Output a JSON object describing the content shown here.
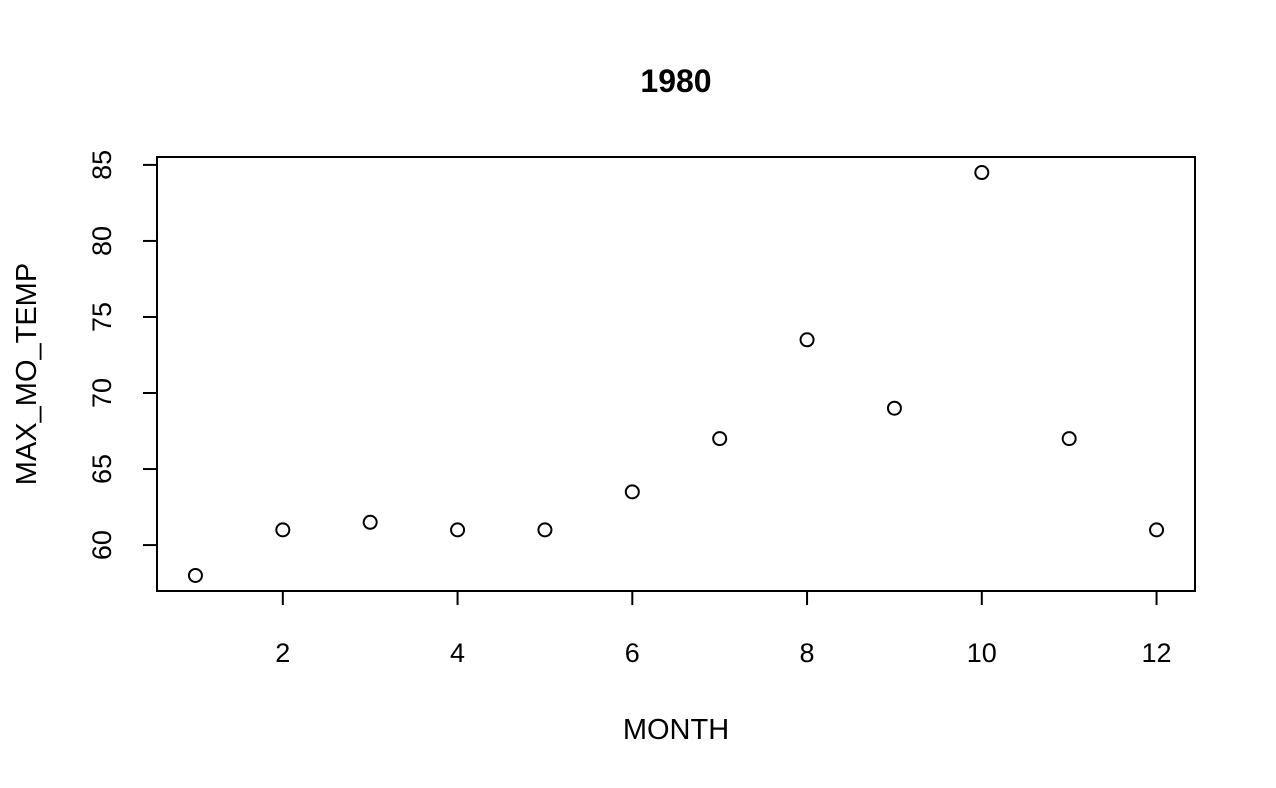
{
  "chart_data": {
    "type": "scatter",
    "title": "1980",
    "xlabel": "MONTH",
    "ylabel": "MAX_MO_TEMP",
    "xlim": [
      0.56,
      12.44
    ],
    "ylim": [
      56.98,
      85.52
    ],
    "x_ticks": [
      2,
      4,
      6,
      8,
      10,
      12
    ],
    "y_ticks": [
      60,
      65,
      70,
      75,
      80,
      85
    ],
    "grid": false,
    "legend": "none",
    "series": [
      {
        "x": [
          1,
          2,
          3,
          4,
          5,
          6,
          7,
          8,
          9,
          10,
          11,
          12
        ],
        "y": [
          58,
          61,
          61.5,
          61,
          61,
          63.5,
          67,
          73.5,
          69,
          84.5,
          67,
          61
        ]
      }
    ]
  }
}
